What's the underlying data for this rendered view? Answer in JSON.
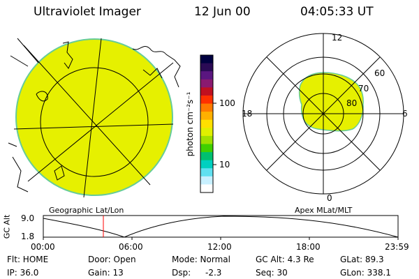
{
  "header": {
    "instrument": "Ultraviolet Imager",
    "date": "12 Jun 00",
    "time": "04:05:33 UT"
  },
  "colors": {
    "aurora_fill": "#e6f000",
    "aurora_edge": "#66cc99",
    "line": "#000000",
    "marker": "#ff0000"
  },
  "colorbar": {
    "unit_label": "photon cm⁻²s⁻¹",
    "ticks": [
      "100",
      "10"
    ],
    "scale": "log",
    "colors": [
      "#000040",
      "#2a0a55",
      "#5a1680",
      "#8a1a70",
      "#c01020",
      "#ff3000",
      "#ff7a00",
      "#ffb000",
      "#ffe000",
      "#e0f000",
      "#a0e000",
      "#40d000",
      "#00c070",
      "#00d0c0",
      "#60e0f0",
      "#c8f0ff",
      "#ffffff"
    ]
  },
  "left_panel": {
    "caption": "Geographic Lat/Lon"
  },
  "right_panel": {
    "caption": "Apex MLat/MLT",
    "mlt_labels": {
      "top": "12",
      "bottom": "0",
      "left": "18",
      "right": "6"
    },
    "lat_labels": [
      "60",
      "70",
      "80"
    ]
  },
  "altitude_plot": {
    "ylabel": "GC Alt",
    "yticks": [
      "9.0",
      "1.8"
    ],
    "xticks": [
      "00:00",
      "06:00",
      "12:00",
      "18:00",
      "23:59"
    ]
  },
  "status": {
    "row1": {
      "flt": "Flt: HOME",
      "door": "Door: Open",
      "mode": "Mode: Normal",
      "gc_alt": "GC Alt: 4.3 Re",
      "glat": "GLat: 89.3"
    },
    "row2": {
      "ip": "IP: 36.0",
      "gain": "Gain: 13",
      "dsp_label": "Dsp:",
      "dsp_value": "-2.3",
      "seq": "Seq: 30",
      "glon": "GLon: 338.1"
    }
  }
}
